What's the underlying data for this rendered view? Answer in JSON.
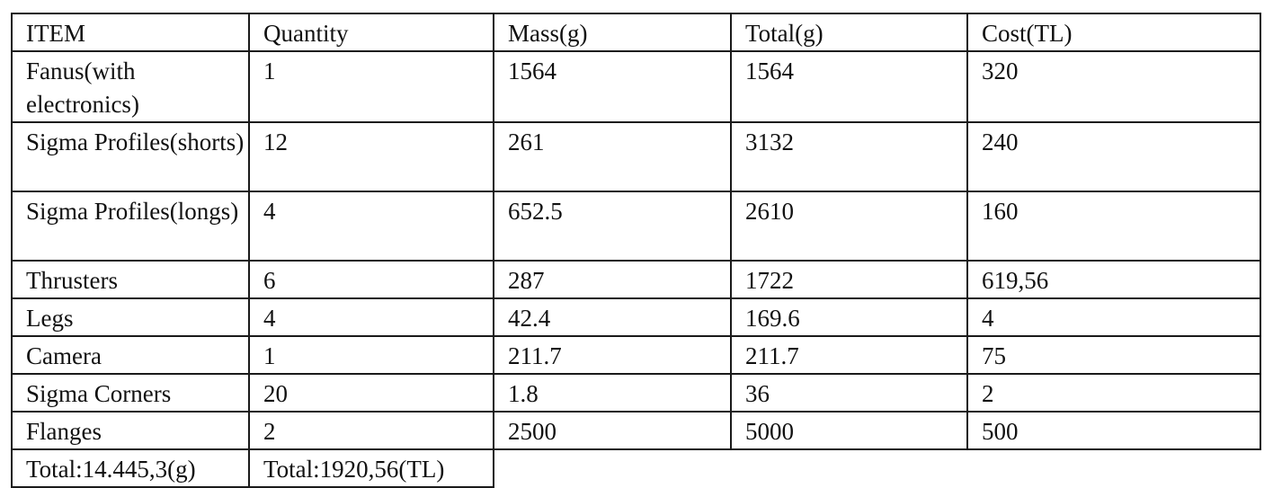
{
  "table": {
    "headers": [
      "ITEM",
      "Quantity",
      "Mass(g)",
      "Total(g)",
      "Cost(TL)"
    ],
    "rows": [
      [
        "Fanus(with electronics)",
        "1",
        "1564",
        "1564",
        "320"
      ],
      [
        "Sigma Profiles(shorts)",
        "12",
        "261",
        "3132",
        "240"
      ],
      [
        "Sigma Profiles(longs)",
        "4",
        "652.5",
        "2610",
        "160"
      ],
      [
        "Thrusters",
        "6",
        "287",
        "1722",
        "619,56"
      ],
      [
        "Legs",
        "4",
        "42.4",
        "169.6",
        "4"
      ],
      [
        "Camera",
        "1",
        "211.7",
        "211.7",
        "75"
      ],
      [
        "Sigma Corners",
        "20",
        "1.8",
        "36",
        "2"
      ],
      [
        "Flanges",
        "2",
        "2500",
        "5000",
        "500"
      ]
    ]
  },
  "totals": {
    "mass": "Total:14.445,3(g)",
    "cost": "Total:1920,56(TL)"
  }
}
